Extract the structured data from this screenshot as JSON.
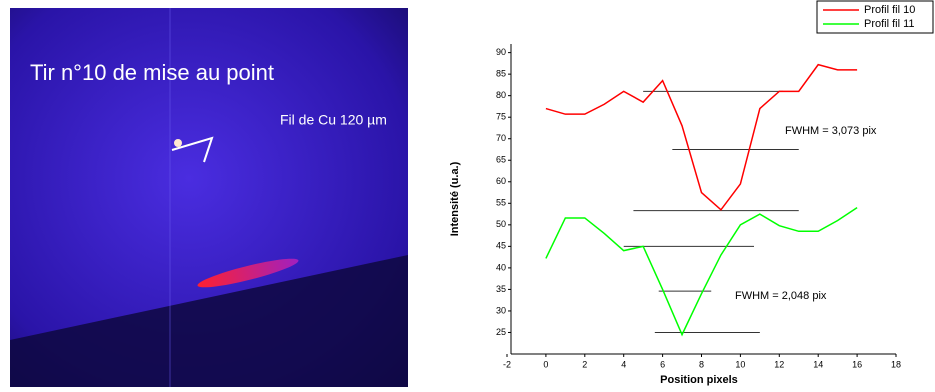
{
  "image": {
    "title": "Tir n°10 de mise au point",
    "label": "Fil de Cu 120 µm"
  },
  "chart_data": {
    "type": "line",
    "x_label": "Position pixels",
    "y_label": "Intensité (u.a.)",
    "x": [
      0,
      1,
      2,
      3,
      4,
      5,
      6,
      7,
      8,
      9,
      10,
      11,
      12,
      13,
      14,
      15,
      16
    ],
    "series": [
      {
        "name": "Profil fil 10",
        "color": "#ff0000",
        "values": [
          77,
          75.7,
          75.7,
          78,
          81,
          78.5,
          83.5,
          73,
          57.5,
          53.5,
          59.5,
          77,
          81,
          81,
          87.2,
          86,
          86
        ]
      },
      {
        "name": "Profil fil 11",
        "color": "#00ff00",
        "values": [
          42.2,
          51.6,
          51.6,
          48,
          44,
          45,
          35,
          24.5,
          34,
          43,
          50,
          52.5,
          49.8,
          48.5,
          48.5,
          51,
          54
        ]
      }
    ],
    "hlines": [
      {
        "y": 81,
        "x": [
          5,
          12.2
        ]
      },
      {
        "y": 67.5,
        "x": [
          6.5,
          13
        ]
      },
      {
        "y": 53.3,
        "x": [
          4.5,
          13
        ]
      },
      {
        "y": 45,
        "x": [
          4,
          10.7
        ]
      },
      {
        "y": 34.6,
        "x": [
          5.8,
          8.5
        ]
      },
      {
        "y": 25,
        "x": [
          5.6,
          11
        ]
      }
    ],
    "annotations": [
      "FWHM = 3,073 pix",
      "FWHM = 2,048 pix"
    ],
    "xlim": [
      -2,
      18
    ],
    "xticks": [
      -2,
      0,
      2,
      4,
      6,
      8,
      10,
      12,
      14,
      16,
      18
    ],
    "ylim": [
      20,
      92
    ],
    "yticks": [
      25,
      30,
      35,
      40,
      45,
      50,
      55,
      60,
      65,
      70,
      75,
      80,
      85,
      90
    ],
    "legend": "top-right"
  }
}
